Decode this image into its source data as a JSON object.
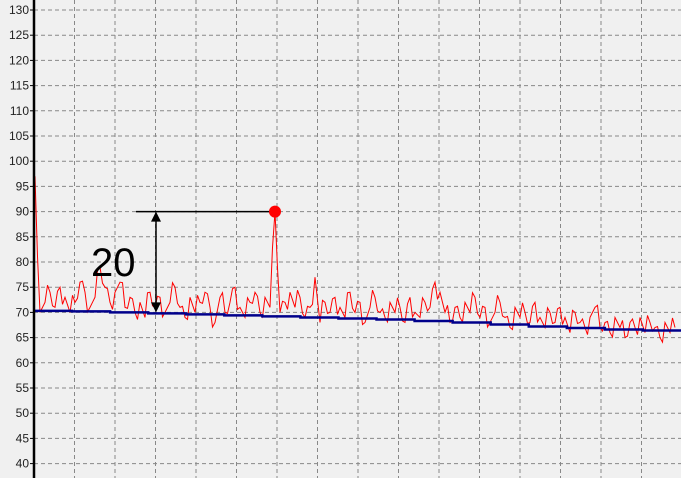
{
  "chart_data": {
    "type": "line",
    "title": "",
    "xlabel": "",
    "ylabel": "",
    "ylim": [
      40,
      130
    ],
    "yticks": [
      40,
      45,
      50,
      55,
      60,
      65,
      70,
      75,
      80,
      85,
      90,
      95,
      100,
      105,
      110,
      115,
      120,
      125,
      130
    ],
    "grid": true,
    "series": [
      {
        "color": "#ff0000",
        "values": [
          97,
          70,
          72,
          74,
          71,
          75,
          73,
          70,
          72,
          76,
          74,
          71,
          73,
          79,
          75,
          72,
          74,
          76,
          71,
          73,
          70,
          72,
          69,
          74,
          71,
          73,
          70,
          72,
          75,
          71,
          69,
          73,
          70,
          72,
          74,
          71,
          68,
          73,
          70,
          72,
          75,
          71,
          69,
          72,
          74,
          70,
          73,
          71,
          90,
          70,
          72,
          74,
          71,
          73,
          69,
          71,
          77,
          68,
          72,
          70,
          73,
          71,
          69,
          74,
          70,
          72,
          68,
          71,
          73,
          70,
          69,
          72,
          70,
          71,
          68,
          73,
          70,
          69,
          72,
          71,
          76,
          74,
          70,
          68,
          71,
          69,
          72,
          70,
          73,
          69,
          71,
          68,
          70,
          72,
          69,
          67,
          71,
          69,
          70,
          68,
          72,
          69,
          67,
          70,
          68,
          71,
          69,
          66,
          70,
          68,
          67,
          69,
          71,
          67,
          68,
          66,
          69,
          67,
          65,
          68,
          67,
          69,
          66,
          68,
          67,
          65,
          68,
          66,
          67
        ]
      },
      {
        "color": "#00008b",
        "values": [
          70.3,
          70.2,
          70.0,
          69.8,
          69.6,
          69.4,
          69.2,
          69.0,
          68.8,
          68.6,
          68.3,
          68.0,
          67.6,
          67.2,
          66.9,
          66.6,
          66.4
        ]
      }
    ],
    "annotation": {
      "label": "20",
      "from": 70,
      "to": 90,
      "marker_value": 90,
      "marker_color": "#ff0000"
    }
  }
}
